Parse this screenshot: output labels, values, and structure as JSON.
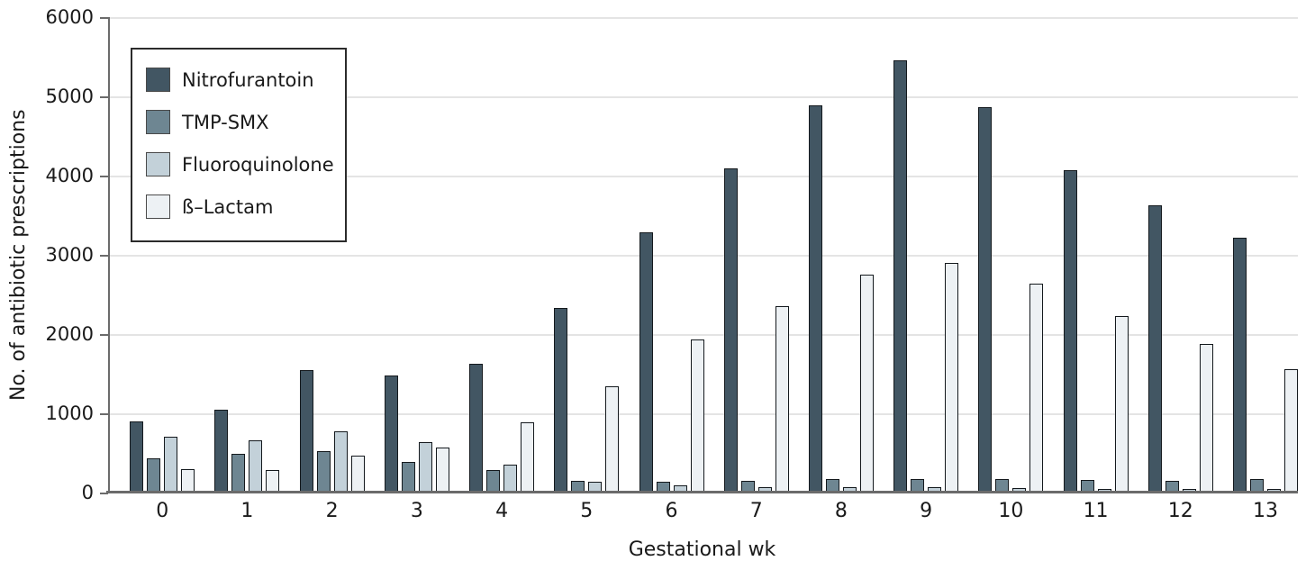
{
  "chart_data": {
    "type": "bar",
    "title": "",
    "xlabel": "Gestational wk",
    "ylabel": "No. of antibiotic prescriptions",
    "categories": [
      "0",
      "1",
      "2",
      "3",
      "4",
      "5",
      "6",
      "7",
      "8",
      "9",
      "10",
      "11",
      "12",
      "13"
    ],
    "ylim": [
      0,
      6000
    ],
    "ytick_interval": 1000,
    "yticks": [
      0,
      1000,
      2000,
      3000,
      4000,
      5000,
      6000
    ],
    "grid": "horizontal",
    "legend_position": "top-left-inside",
    "series": [
      {
        "name": "Nitrofurantoin",
        "color": "#425663",
        "values": [
          900,
          1050,
          1550,
          1480,
          1630,
          2330,
          3280,
          4090,
          4890,
          5460,
          4860,
          4070,
          3620,
          3220
        ]
      },
      {
        "name": "TMP-SMX",
        "color": "#6e8692",
        "values": [
          430,
          490,
          520,
          390,
          280,
          150,
          140,
          150,
          175,
          175,
          175,
          155,
          145,
          170
        ]
      },
      {
        "name": "Fluoroquinolone",
        "color": "#c3d1d9",
        "values": [
          710,
          660,
          770,
          640,
          350,
          135,
          95,
          70,
          70,
          65,
          55,
          45,
          40,
          40
        ]
      },
      {
        "name": "ß–Lactam",
        "color": "#edf1f4",
        "values": [
          290,
          280,
          470,
          570,
          890,
          1340,
          1930,
          2350,
          2750,
          2900,
          2640,
          2230,
          1870,
          1560
        ]
      }
    ]
  },
  "style": {
    "bar_border_color": "#14191d",
    "gridline_color": "#e4e4e4",
    "axis_color": "#6b6b6b",
    "legend_border_color": "#2b2b2b",
    "swatch_border_color": "#4a4a4a",
    "text_color": "#1a1a1a",
    "background_color": "#ffffff"
  }
}
